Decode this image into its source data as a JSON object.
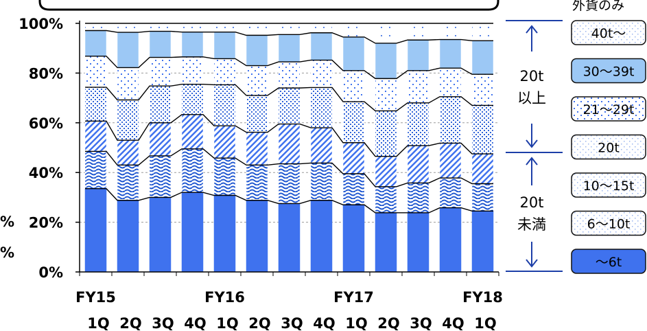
{
  "chart_data": {
    "type": "bar",
    "stacked": true,
    "percent_stacked": true,
    "categories": [
      "1Q",
      "2Q",
      "3Q",
      "4Q",
      "1Q",
      "2Q",
      "3Q",
      "4Q",
      "1Q",
      "2Q",
      "3Q",
      "4Q",
      "1Q"
    ],
    "fiscal_year_labels": [
      {
        "label": "FY15",
        "at_index": 0
      },
      {
        "label": "FY16",
        "at_index": 4
      },
      {
        "label": "FY17",
        "at_index": 8
      },
      {
        "label": "FY18",
        "at_index": 12
      }
    ],
    "ylim": [
      0,
      100
    ],
    "yticks": [
      "0%",
      "20%",
      "40%",
      "60%",
      "80%",
      "100%"
    ],
    "series": [
      {
        "name": "～6t",
        "color": "#3f72ee",
        "values": [
          33.5,
          28.8,
          30.0,
          32.0,
          30.8,
          28.8,
          27.5,
          28.8,
          27.0,
          23.8,
          23.8,
          25.8,
          24.5
        ]
      },
      {
        "name": "6～10t",
        "color": "#2f63d8",
        "values": [
          15.0,
          14.2,
          16.7,
          17.5,
          15.0,
          14.2,
          16.0,
          15.0,
          12.5,
          10.5,
          12.0,
          12.0,
          11.0
        ]
      },
      {
        "name": "10～15t",
        "color": "#5b86e6",
        "values": [
          12.2,
          10.0,
          13.3,
          13.8,
          13.0,
          13.2,
          16.0,
          14.2,
          12.5,
          12.2,
          15.0,
          14.0,
          12.0
        ]
      },
      {
        "name": "20t",
        "color": "#7aa0ee",
        "values": [
          13.6,
          16.2,
          14.8,
          12.2,
          16.5,
          14.8,
          14.5,
          16.2,
          16.5,
          18.3,
          17.2,
          18.7,
          19.5
        ]
      },
      {
        "name": "21～29t",
        "color": "#4f7ee3",
        "values": [
          12.5,
          13.0,
          11.5,
          11.0,
          10.5,
          12.0,
          10.5,
          11.0,
          12.5,
          13.0,
          13.0,
          11.5,
          12.5
        ]
      },
      {
        "name": "30～39t",
        "color": "#9cc8f5",
        "values": [
          10.3,
          14.2,
          10.5,
          10.0,
          10.7,
          12.2,
          11.0,
          11.0,
          13.5,
          14.2,
          12.3,
          11.5,
          13.5
        ]
      },
      {
        "name": "40t～",
        "color": "#c9dcf7",
        "values": [
          2.9,
          3.6,
          3.2,
          3.5,
          3.5,
          4.8,
          4.5,
          3.8,
          5.5,
          8.0,
          6.7,
          6.5,
          7.0
        ]
      }
    ],
    "side_labels": {
      "above": "20t\n以上",
      "below": "20t\n未満"
    },
    "legend": {
      "header": "外貨のみ",
      "entries": [
        "40t～",
        "30～39t",
        "21～29t",
        "20t",
        "10～15t",
        "6～10t",
        "～6t"
      ]
    },
    "left_fragments": [
      "%",
      "%"
    ],
    "grid": true
  }
}
